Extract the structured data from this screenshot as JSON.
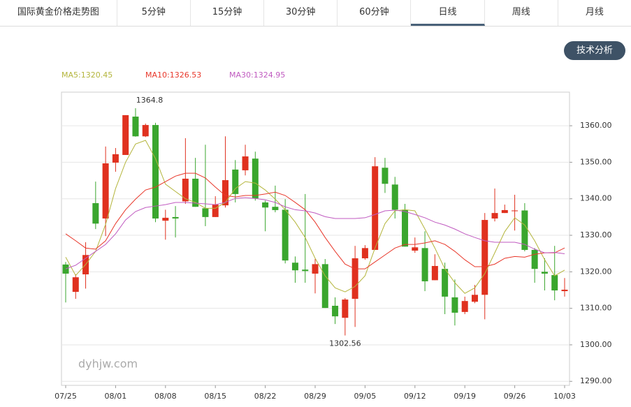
{
  "tabs": [
    {
      "label": "国际黄金价格走势图",
      "active": false
    },
    {
      "label": "5分钟",
      "active": false
    },
    {
      "label": "15分钟",
      "active": false
    },
    {
      "label": "30分钟",
      "active": false
    },
    {
      "label": "60分钟",
      "active": false
    },
    {
      "label": "日线",
      "active": true
    },
    {
      "label": "周线",
      "active": false
    },
    {
      "label": "月线",
      "active": false
    }
  ],
  "button": "技术分析",
  "chart_data": {
    "type": "candlestick",
    "watermark": "dyhjw.com",
    "categories": [
      "07/25",
      null,
      null,
      null,
      null,
      "08/01",
      null,
      null,
      null,
      null,
      "08/08",
      null,
      null,
      null,
      null,
      "08/15",
      null,
      null,
      null,
      null,
      "08/22",
      null,
      null,
      null,
      null,
      "08/29",
      null,
      null,
      null,
      null,
      "09/05",
      null,
      null,
      null,
      null,
      "09/12",
      null,
      null,
      null,
      null,
      "09/19",
      null,
      null,
      null,
      null,
      "09/26",
      null,
      null,
      null,
      null,
      "10/03"
    ],
    "open": [
      1322,
      1314.5,
      1319.3,
      1338.8,
      1334.6,
      1349.9,
      1352,
      1362.5,
      1357.1,
      1360.2,
      1334,
      1335,
      1339.3,
      1345.5,
      1337.4,
      1335,
      1338.2,
      1348,
      1347.8,
      1351,
      1339,
      1337.8,
      1337,
      1322.5,
      1320.6,
      1319.5,
      1322.1,
      1310.7,
      1307.4,
      1312.6,
      1323.7,
      1326,
      1348.5,
      1343.9,
      1337,
      1325.8,
      1326.5,
      1317.7,
      1320.8,
      1313,
      1309,
      1311.8,
      1313.7,
      1334.6,
      1336.1,
      1336.6,
      1336.8,
      1326,
      1320,
      1319.1,
      1314.7
    ],
    "high": [
      1322.7,
      1319.3,
      1328.1,
      1344.7,
      1354.3,
      1353.9,
      1362.9,
      1364.8,
      1360.6,
      1360.8,
      1337,
      1338,
      1356.6,
      1351.2,
      1354.8,
      1340.7,
      1357.1,
      1350.6,
      1354.8,
      1352.9,
      1339.5,
      1343.6,
      1339.9,
      1324.2,
      1341.3,
      1323.5,
      1323.5,
      1313,
      1312.8,
      1327.1,
      1327.3,
      1351.4,
      1351.2,
      1346,
      1338.6,
      1329.4,
      1331.1,
      1324.8,
      1322.5,
      1317.9,
      1313.2,
      1316.4,
      1336.1,
      1342.8,
      1338.4,
      1341.1,
      1338.8,
      1326.5,
      1323.7,
      1327.1,
      1318.3
    ],
    "low": [
      1311.6,
      1312.6,
      1315.4,
      1331.7,
      1329.8,
      1347.4,
      1352,
      1357,
      1356.9,
      1333.6,
      1328.8,
      1329.4,
      1338.6,
      1337.8,
      1332.5,
      1335,
      1337.6,
      1339,
      1346.4,
      1339.5,
      1331.1,
      1336.3,
      1322.3,
      1317,
      1317,
      1314.1,
      1310.1,
      1305.7,
      1302.56,
      1304.9,
      1323.3,
      1326,
      1341.6,
      1334.6,
      1326.9,
      1325.2,
      1314.7,
      1317.7,
      1308.4,
      1305.3,
      1308.4,
      1311.4,
      1307,
      1333.8,
      1336.1,
      1331.3,
      1325.6,
      1317,
      1314.9,
      1312.2,
      1313.2
    ],
    "close": [
      1319.5,
      1318.5,
      1324.6,
      1333.2,
      1349.7,
      1352.2,
      1362.9,
      1357.1,
      1360.2,
      1334.6,
      1334.8,
      1334.6,
      1345.5,
      1337.8,
      1335,
      1338.4,
      1345.1,
      1341.3,
      1351.6,
      1340.1,
      1337.6,
      1336.9,
      1323.1,
      1320.4,
      1320.2,
      1322.1,
      1310.1,
      1307.8,
      1312.4,
      1323.7,
      1326.5,
      1348.9,
      1344.1,
      1337,
      1326.9,
      1326.7,
      1317.4,
      1321.6,
      1313.2,
      1308.8,
      1312,
      1313.7,
      1334.2,
      1336.1,
      1336.9,
      1336.8,
      1326,
      1320.8,
      1319.5,
      1314.9,
      1315.1
    ],
    "up_color": "#e0311f",
    "down_color": "#3aa62e",
    "max_label": "1364.8",
    "min_label": "1302.56",
    "ma": [
      {
        "name": "MA5:1320.45",
        "color": "#b4b53c",
        "values": [
          1324,
          1319,
          1322,
          1325.6,
          1333,
          1342.8,
          1350,
          1355,
          1356,
          1351,
          1344,
          1342,
          1340,
          1339,
          1337.4,
          1337.4,
          1339,
          1342.8,
          1344.7,
          1344.3,
          1342.4,
          1339.9,
          1337,
          1333.6,
          1329.4,
          1323.7,
          1318.9,
          1315.6,
          1314.5,
          1316,
          1318.9,
          1326.5,
          1333.2,
          1336.7,
          1337,
          1336.7,
          1331.7,
          1326.5,
          1320.8,
          1317,
          1314.1,
          1315.6,
          1319.5,
          1325.2,
          1331,
          1334.8,
          1332.8,
          1328.5,
          1323.3,
          1318.9,
          1320.45
        ]
      },
      {
        "name": "MA10:1326.53",
        "color": "#e8372a",
        "values": [
          1330.4,
          1328.5,
          1326.5,
          1326.2,
          1328.5,
          1333.2,
          1337,
          1339.9,
          1342.4,
          1343.2,
          1344.7,
          1346.2,
          1347,
          1347,
          1345.7,
          1343.2,
          1340.9,
          1340.5,
          1340.9,
          1340.9,
          1341.3,
          1341.8,
          1340.9,
          1339,
          1337,
          1333.6,
          1329.4,
          1325.6,
          1322.1,
          1320.8,
          1320.8,
          1322.7,
          1324.6,
          1326.5,
          1327.5,
          1327.5,
          1327.9,
          1328.5,
          1327.5,
          1325.6,
          1323.3,
          1321.4,
          1321.4,
          1322.1,
          1323.7,
          1324.2,
          1324,
          1324.8,
          1325.2,
          1325.2,
          1326.53
        ]
      },
      {
        "name": "MA30:1324.95",
        "color": "#c05ac0",
        "values": [
          1320.8,
          1321.8,
          1323.7,
          1325.6,
          1327.5,
          1330.4,
          1334.2,
          1336.5,
          1337.6,
          1338,
          1338.4,
          1339,
          1339,
          1338.8,
          1338.6,
          1338.4,
          1339,
          1340.1,
          1340.3,
          1340.1,
          1339.7,
          1339,
          1337.8,
          1337,
          1336.7,
          1336.1,
          1335.1,
          1334.6,
          1334.6,
          1334.6,
          1334.8,
          1335.7,
          1336.7,
          1336.9,
          1336.5,
          1335.7,
          1334.8,
          1333.6,
          1332.8,
          1331.7,
          1330.4,
          1329.4,
          1328.5,
          1328.1,
          1328.1,
          1328.1,
          1327.5,
          1326.2,
          1325.2,
          1325.3,
          1324.95
        ]
      }
    ],
    "ylim": [
      1288.9,
      1369.2
    ],
    "yticks": [
      {
        "value": 1290,
        "label": "1290.00"
      },
      {
        "value": 1300,
        "label": "1300.00"
      },
      {
        "value": 1310,
        "label": "1310.00"
      },
      {
        "value": 1320,
        "label": "1320.00"
      },
      {
        "value": 1330,
        "label": "1330.00"
      },
      {
        "value": 1340,
        "label": "1340.00"
      },
      {
        "value": 1350,
        "label": "1350.00"
      },
      {
        "value": 1360,
        "label": "1360.00"
      }
    ],
    "grid": true
  }
}
